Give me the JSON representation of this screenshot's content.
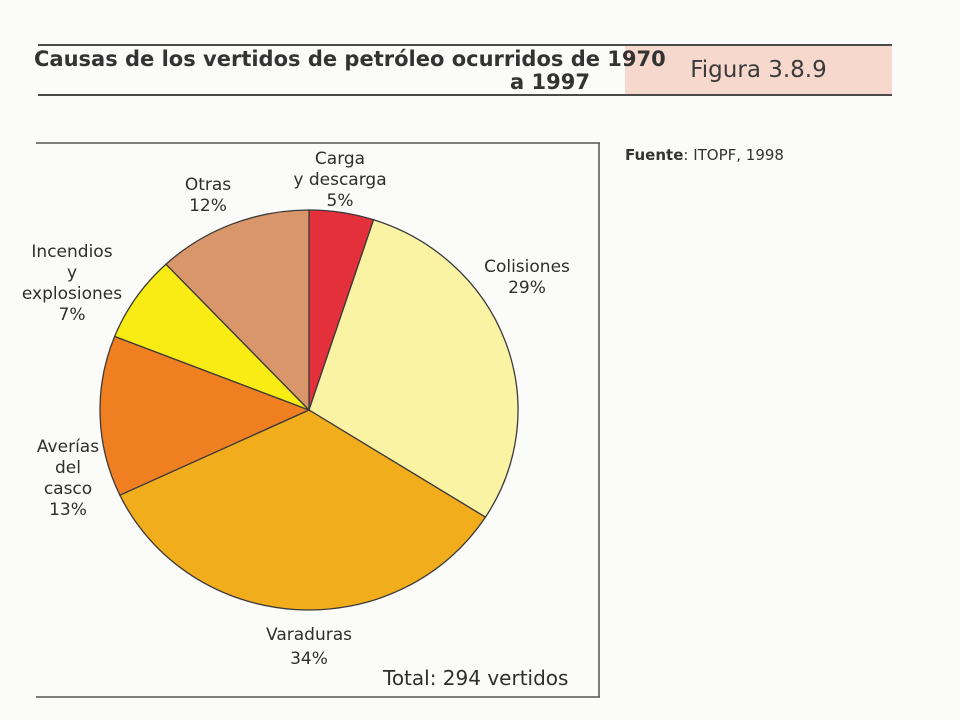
{
  "header": {
    "title_line1": "Causas de los vertidos de petróleo ocurridos de 1970",
    "title_line2": "a 1997",
    "figure_label": "Figura 3.8.9"
  },
  "source": {
    "label": "Fuente",
    "text": ": ITOPF, 1998"
  },
  "total_text": "Total: 294 vertidos",
  "chart_data": {
    "type": "pie",
    "title": "Causas de los vertidos de petróleo ocurridos de 1970 a 1997",
    "total": "294 vertidos",
    "slices": [
      {
        "name": "Carga y descarga",
        "label_lines": [
          "Carga",
          "y descarga",
          "5%"
        ],
        "value": 5,
        "color": "#e3303a"
      },
      {
        "name": "Colisiones",
        "label_lines": [
          "Colisiones",
          "29%"
        ],
        "value": 29,
        "color": "#fbf3a4"
      },
      {
        "name": "Varaduras",
        "label_lines": [
          "Varaduras",
          "34%"
        ],
        "value": 34,
        "color": "#f2ad1c"
      },
      {
        "name": "Averías del casco",
        "label_lines": [
          "Averías",
          "del",
          "casco",
          "13%"
        ],
        "value": 13,
        "color": "#f07f22"
      },
      {
        "name": "Incendios y explosiones",
        "label_lines": [
          "Incendios",
          "y",
          "explosiones",
          "7%"
        ],
        "value": 7,
        "color": "#f9ec14"
      },
      {
        "name": "Otras",
        "label_lines": [
          "Otras",
          "12%"
        ],
        "value": 12,
        "color": "#d8966a"
      }
    ]
  }
}
